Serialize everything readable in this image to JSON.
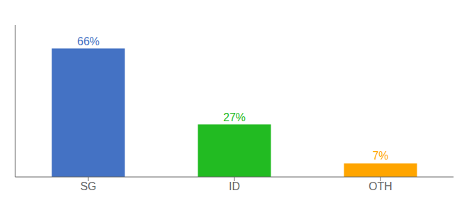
{
  "chart_data": {
    "type": "bar",
    "categories": [
      "SG",
      "ID",
      "OTH"
    ],
    "values": [
      66,
      27,
      7
    ],
    "value_labels": [
      "66%",
      "27%",
      "7%"
    ],
    "colors": [
      "#4472C4",
      "#22BB22",
      "#FFA500"
    ],
    "ylim": [
      0,
      78
    ],
    "data_labels": true,
    "tick_labels": "x",
    "grid": false
  }
}
